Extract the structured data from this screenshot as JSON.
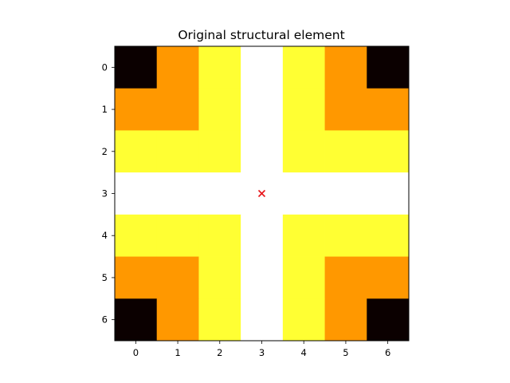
{
  "chart_data": {
    "type": "heatmap",
    "title": "Original structural element",
    "xlabel": "",
    "ylabel": "",
    "x_ticks": [
      "0",
      "1",
      "2",
      "3",
      "4",
      "5",
      "6"
    ],
    "y_ticks": [
      "0",
      "1",
      "2",
      "3",
      "4",
      "5",
      "6"
    ],
    "colormap": "hot",
    "value_range": [
      0,
      3
    ],
    "grid": false,
    "matrix": [
      [
        0,
        1,
        2,
        3,
        2,
        1,
        0
      ],
      [
        1,
        1,
        2,
        3,
        2,
        1,
        1
      ],
      [
        2,
        2,
        2,
        3,
        2,
        2,
        2
      ],
      [
        3,
        3,
        3,
        3,
        3,
        3,
        3
      ],
      [
        2,
        2,
        2,
        3,
        2,
        2,
        2
      ],
      [
        1,
        1,
        2,
        3,
        2,
        1,
        1
      ],
      [
        0,
        1,
        2,
        3,
        2,
        1,
        0
      ]
    ],
    "level_colors": [
      "#0b0000",
      "#ff9800",
      "#ffff33",
      "#ffffff"
    ],
    "marker": {
      "symbol": "x",
      "x": 3,
      "y": 3,
      "color": "#e8161b"
    }
  }
}
